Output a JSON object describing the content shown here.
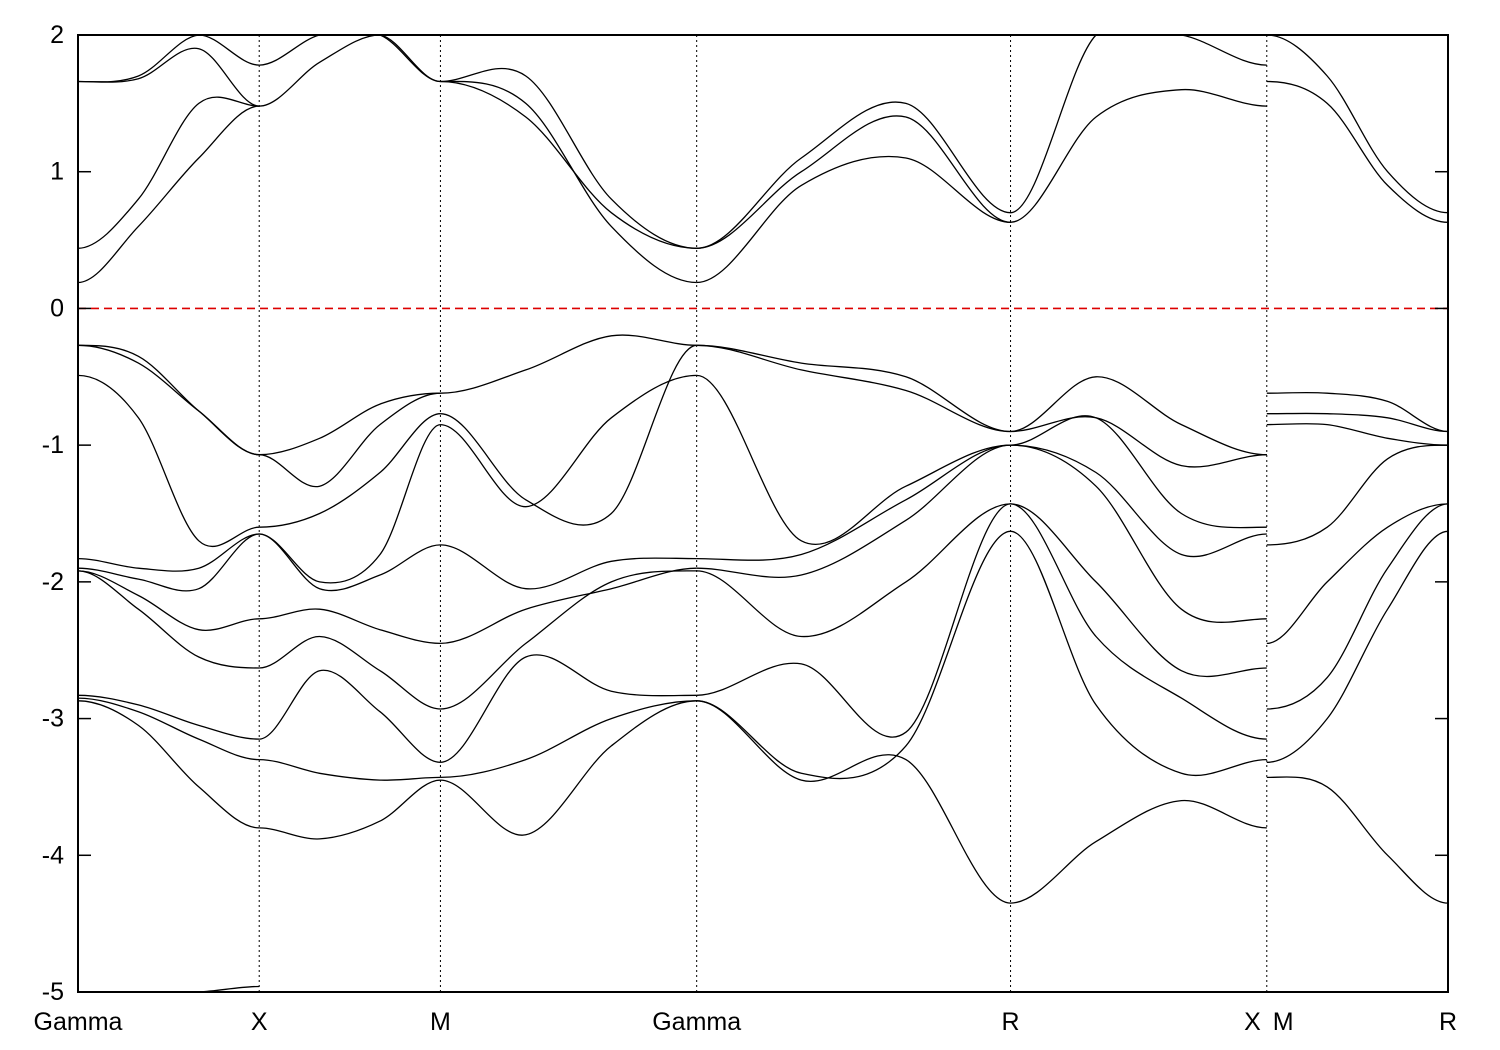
{
  "chart_data": {
    "type": "line",
    "title": "",
    "xlabel": "",
    "ylabel": "",
    "ylim": [
      -5,
      2
    ],
    "yticks": [
      -5,
      -4,
      -3,
      -2,
      -1,
      0,
      1,
      2
    ],
    "ytick_labels": [
      "-5",
      "-4",
      "-3",
      "-2",
      "-1",
      "0",
      "1",
      "2"
    ],
    "kpath": [
      {
        "label": "Gamma",
        "x": 0
      },
      {
        "label": "X",
        "x": 0.5
      },
      {
        "label": "M",
        "x": 1.0
      },
      {
        "label": "Gamma",
        "x": 1.707
      },
      {
        "label": "R",
        "x": 2.573
      },
      {
        "label": "X",
        "x": 3.28
      },
      {
        "label": "M",
        "x": 3.28
      },
      {
        "label": "R",
        "x": 3.78
      }
    ],
    "xlim": [
      0,
      3.78
    ],
    "fermi_level": {
      "y": 0,
      "color": "#dd0000",
      "style": "dashed"
    },
    "colors": {
      "bands": "#000000",
      "fermi": "#dd0000"
    },
    "segments": [
      {
        "from": "Gamma",
        "to": "X",
        "bands": [
          [
            1.66,
            1.7,
            2.1,
            1.78
          ],
          [
            1.66,
            1.68,
            1.9,
            1.48
          ],
          [
            0.44,
            0.8,
            1.5,
            1.48
          ],
          [
            0.19,
            0.6,
            1.1,
            1.48
          ],
          [
            -0.27,
            -0.4,
            -0.75,
            -1.07
          ],
          [
            -0.27,
            -0.35,
            -0.75,
            -1.07
          ],
          [
            -0.49,
            -0.8,
            -1.7,
            -1.6
          ],
          [
            -1.83,
            -1.9,
            -1.9,
            -1.65
          ],
          [
            -1.9,
            -1.98,
            -2.05,
            -1.65
          ],
          [
            -1.92,
            -2.1,
            -2.35,
            -2.27
          ],
          [
            -1.92,
            -2.2,
            -2.55,
            -2.63
          ],
          [
            -2.83,
            -2.9,
            -3.05,
            -3.15
          ],
          [
            -2.85,
            -2.95,
            -3.15,
            -3.3
          ],
          [
            -2.87,
            -3.05,
            -3.5,
            -3.8
          ],
          [
            -5.0,
            -5.0,
            -5.0,
            -4.96
          ]
        ]
      },
      {
        "from": "X",
        "to": "M",
        "bands": [
          [
            1.78,
            2.0,
            2.0,
            1.66
          ],
          [
            1.48,
            1.8,
            2.0,
            1.66
          ],
          [
            -1.07,
            -1.3,
            -0.85,
            -0.62
          ],
          [
            -1.07,
            -0.95,
            -0.7,
            -0.62
          ],
          [
            -1.6,
            -1.5,
            -1.2,
            -0.77
          ],
          [
            -1.65,
            -2.05,
            -1.95,
            -1.73
          ],
          [
            -1.65,
            -2.0,
            -1.8,
            -0.85
          ],
          [
            -2.27,
            -2.2,
            -2.35,
            -2.45
          ],
          [
            -2.63,
            -2.4,
            -2.65,
            -2.93
          ],
          [
            -3.15,
            -2.65,
            -2.95,
            -3.32
          ],
          [
            -3.3,
            -3.4,
            -3.45,
            -3.43
          ],
          [
            -3.8,
            -3.88,
            -3.75,
            -3.45
          ]
        ]
      },
      {
        "from": "M",
        "to": "Gamma",
        "bands": [
          [
            1.66,
            1.7,
            0.8,
            0.44
          ],
          [
            1.66,
            1.4,
            0.7,
            0.44
          ],
          [
            1.66,
            1.5,
            0.6,
            0.19
          ],
          [
            -0.62,
            -0.45,
            -0.2,
            -0.27
          ],
          [
            -0.77,
            -1.4,
            -1.5,
            -0.27
          ],
          [
            -0.85,
            -1.45,
            -0.8,
            -0.49
          ],
          [
            -1.73,
            -2.05,
            -1.85,
            -1.83
          ],
          [
            -2.45,
            -2.2,
            -2.05,
            -1.9
          ],
          [
            -2.93,
            -2.45,
            -2.0,
            -1.92
          ],
          [
            -3.32,
            -2.55,
            -2.8,
            -2.83
          ],
          [
            -3.43,
            -3.3,
            -3.0,
            -2.87
          ],
          [
            -3.45,
            -3.85,
            -3.2,
            -2.87
          ]
        ]
      },
      {
        "from": "Gamma",
        "to": "R",
        "bands": [
          [
            0.44,
            1.1,
            1.5,
            0.7
          ],
          [
            0.44,
            1.0,
            1.4,
            0.63
          ],
          [
            0.19,
            0.9,
            1.1,
            0.63
          ],
          [
            -0.27,
            -0.4,
            -0.5,
            -0.9
          ],
          [
            -0.27,
            -0.45,
            -0.6,
            -0.9
          ],
          [
            -0.49,
            -1.7,
            -1.3,
            -1.0
          ],
          [
            -1.83,
            -1.8,
            -1.4,
            -1.0
          ],
          [
            -1.9,
            -1.95,
            -1.55,
            -1.0
          ],
          [
            -1.92,
            -2.4,
            -2.0,
            -1.43
          ],
          [
            -2.83,
            -2.6,
            -3.1,
            -1.43
          ],
          [
            -2.87,
            -3.4,
            -3.2,
            -1.63
          ],
          [
            -2.87,
            -3.45,
            -3.3,
            -4.35
          ]
        ]
      },
      {
        "from": "R",
        "to": "X",
        "bands": [
          [
            0.7,
            2.2,
            2.2,
            1.78
          ],
          [
            0.63,
            1.4,
            1.6,
            1.48
          ],
          [
            -0.9,
            -0.5,
            -0.85,
            -1.07
          ],
          [
            -0.9,
            -0.8,
            -1.15,
            -1.07
          ],
          [
            -1.0,
            -0.8,
            -1.5,
            -1.6
          ],
          [
            -1.0,
            -1.2,
            -1.8,
            -1.65
          ],
          [
            -1.0,
            -1.3,
            -2.2,
            -2.27
          ],
          [
            -1.43,
            -2.0,
            -2.65,
            -2.63
          ],
          [
            -1.43,
            -2.4,
            -2.85,
            -3.15
          ],
          [
            -1.63,
            -2.9,
            -3.4,
            -3.3
          ],
          [
            -4.35,
            -3.9,
            -3.6,
            -3.8
          ]
        ]
      },
      {
        "from": "M",
        "to": "R",
        "bands": [
          [
            1.66,
            1.5,
            0.9,
            0.63
          ],
          [
            2.0,
            1.7,
            1.0,
            0.7
          ],
          [
            -0.62,
            -0.62,
            -0.68,
            -0.9
          ],
          [
            -0.77,
            -0.77,
            -0.8,
            -0.9
          ],
          [
            -0.85,
            -0.85,
            -0.95,
            -1.0
          ],
          [
            -1.73,
            -1.6,
            -1.1,
            -1.0
          ],
          [
            -2.45,
            -2.0,
            -1.6,
            -1.43
          ],
          [
            -2.93,
            -2.7,
            -1.9,
            -1.43
          ],
          [
            -3.32,
            -3.0,
            -2.2,
            -1.63
          ],
          [
            -3.43,
            -3.5,
            -4.0,
            -4.35
          ]
        ]
      }
    ]
  }
}
